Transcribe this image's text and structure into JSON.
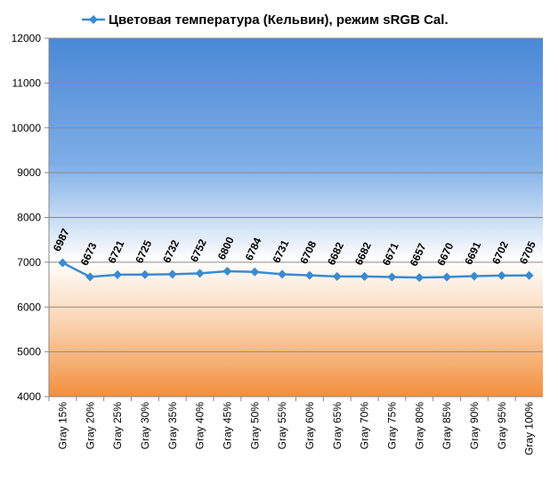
{
  "chart_data": {
    "type": "line",
    "categories": [
      "Gray 15%",
      "Gray 20%",
      "Gray 25%",
      "Gray 30%",
      "Gray 35%",
      "Gray 40%",
      "Gray 45%",
      "Gray 50%",
      "Gray 55%",
      "Gray 60%",
      "Gray 65%",
      "Gray 70%",
      "Gray 75%",
      "Gray 80%",
      "Gray 85%",
      "Gray 90%",
      "Gray 95%",
      "Gray 100%"
    ],
    "series": [
      {
        "name": "Цветовая температура (Кельвин), режим sRGB Cal.",
        "color": "#3a8bd0",
        "values": [
          6987,
          6673,
          6721,
          6725,
          6732,
          6752,
          6800,
          6784,
          6731,
          6708,
          6682,
          6682,
          6671,
          6657,
          6670,
          6691,
          6702,
          6705
        ]
      }
    ],
    "ylim": [
      4000,
      12000
    ],
    "yticks": [
      4000,
      5000,
      6000,
      7000,
      8000,
      9000,
      10000,
      11000,
      12000
    ],
    "grid": true,
    "legend": "top"
  }
}
